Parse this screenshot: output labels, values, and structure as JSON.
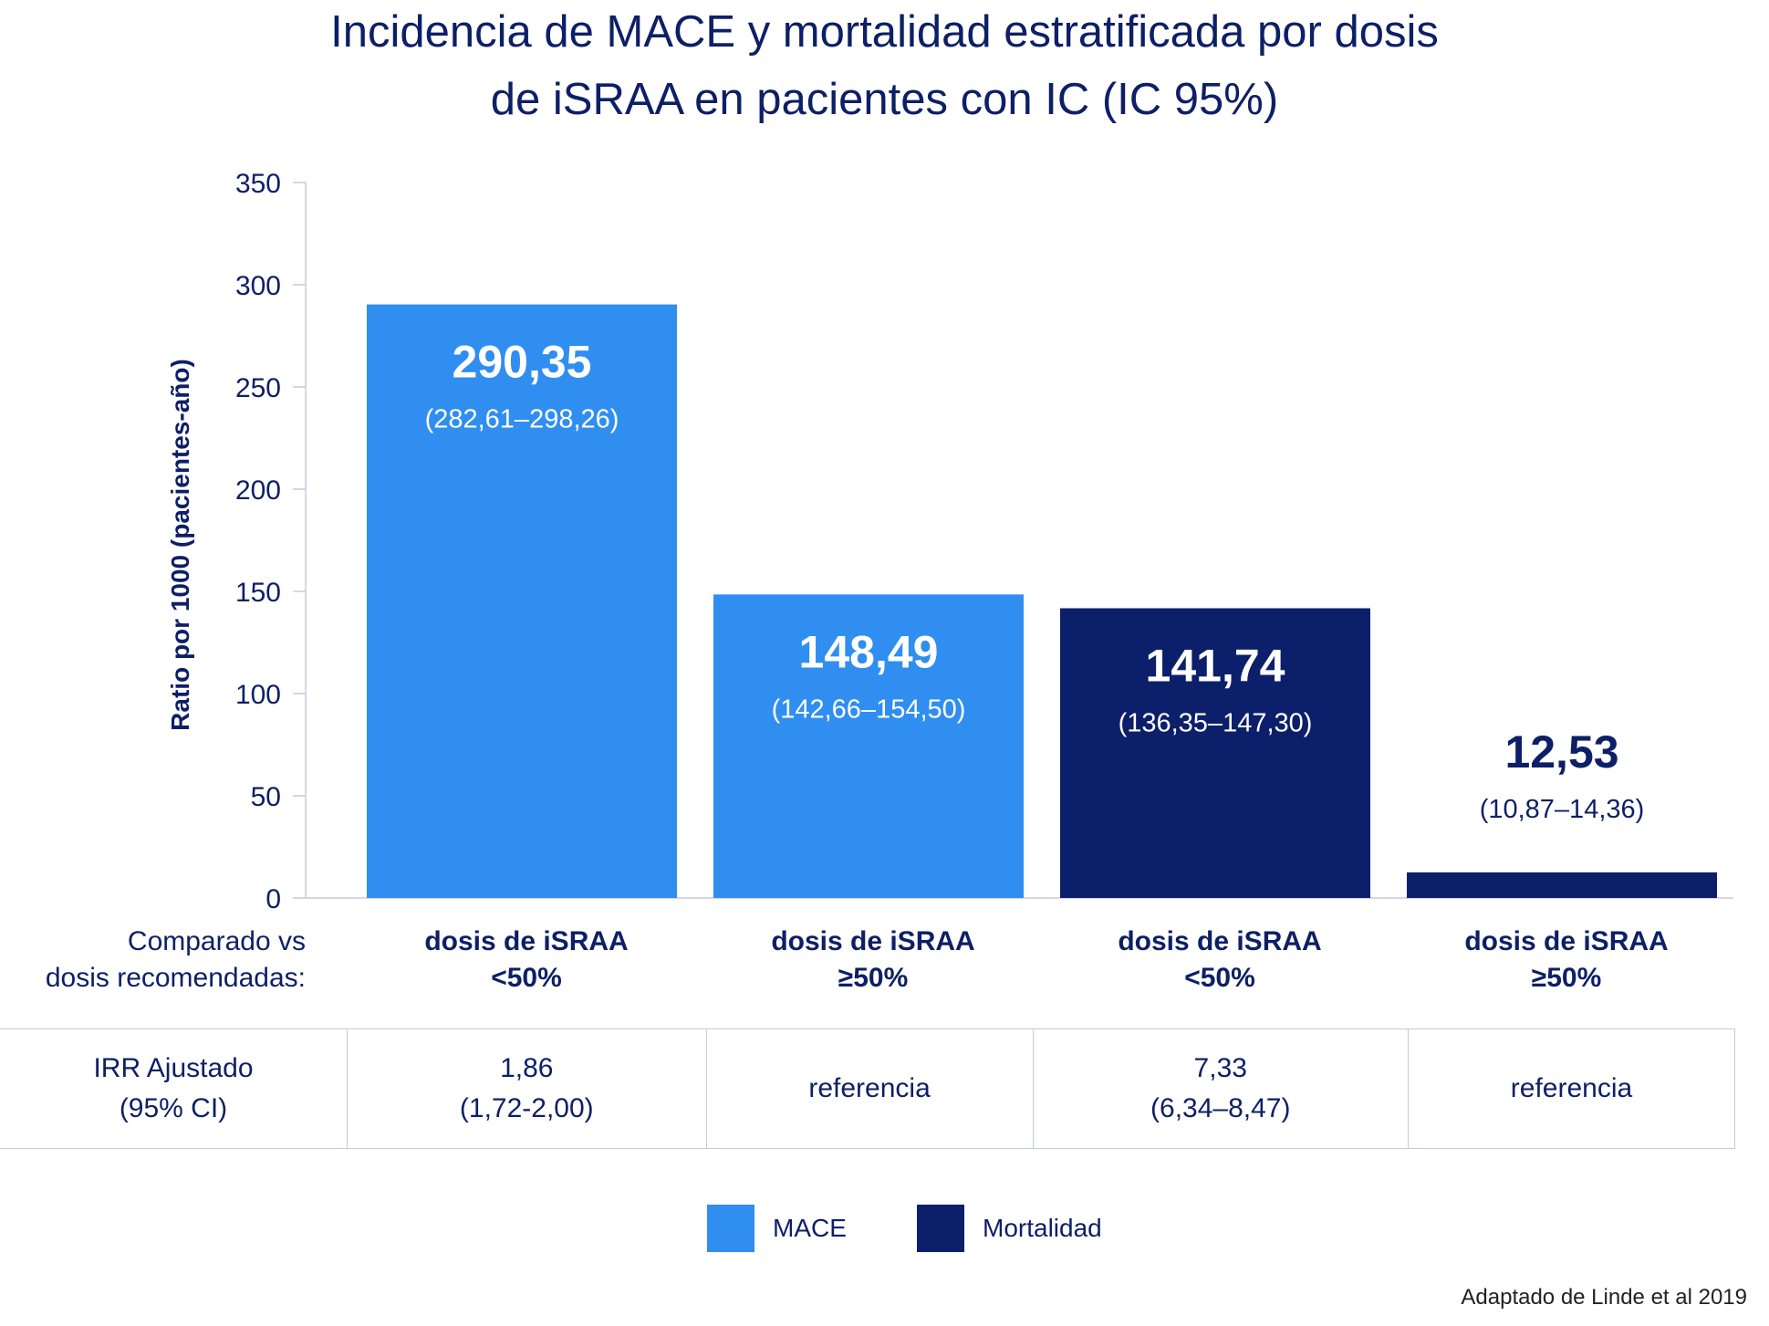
{
  "chart_data": {
    "type": "bar",
    "title_line1": "Incidencia de MACE y mortalidad estratificada por dosis",
    "title_line2": "de iSRAA en pacientes con IC (IC 95%)",
    "ylabel": "Ratio por 1000 (pacientes-año)",
    "ylim": [
      0,
      350
    ],
    "yticks": [
      0,
      50,
      100,
      150,
      200,
      250,
      300,
      350
    ],
    "grid": false,
    "categories": [
      "dosis de iSRAA\n<50%",
      "dosis de iSRAA\n≥50%",
      "dosis de iSRAA\n<50%",
      "dosis de iSRAA\n≥50%"
    ],
    "values": [
      290.35,
      148.49,
      141.74,
      12.53
    ],
    "value_labels": [
      "290,35",
      "148,49",
      "141,74",
      "12,53"
    ],
    "ci_labels": [
      "(282,61–298,26)",
      "(142,66–154,50)",
      "(136,35–147,30)",
      "(10,87–14,36)"
    ],
    "bar_series": [
      "MACE",
      "MACE",
      "Mortalidad",
      "Mortalidad"
    ],
    "series": [
      {
        "name": "MACE",
        "color": "#2f8ef0"
      },
      {
        "name": "Mortalidad",
        "color": "#0c1f6b"
      }
    ],
    "legend_position": "bottom-center"
  },
  "comparison_label": "Comparado vs\ndosis recomendadas:",
  "irr_table": {
    "header": "IRR Ajustado\n(95% CI)",
    "cells": [
      "1,86\n(1,72-2,00)",
      "referencia",
      "7,33\n(6,34–8,47)",
      "referencia"
    ]
  },
  "source": "Adaptado de Linde et al 2019"
}
